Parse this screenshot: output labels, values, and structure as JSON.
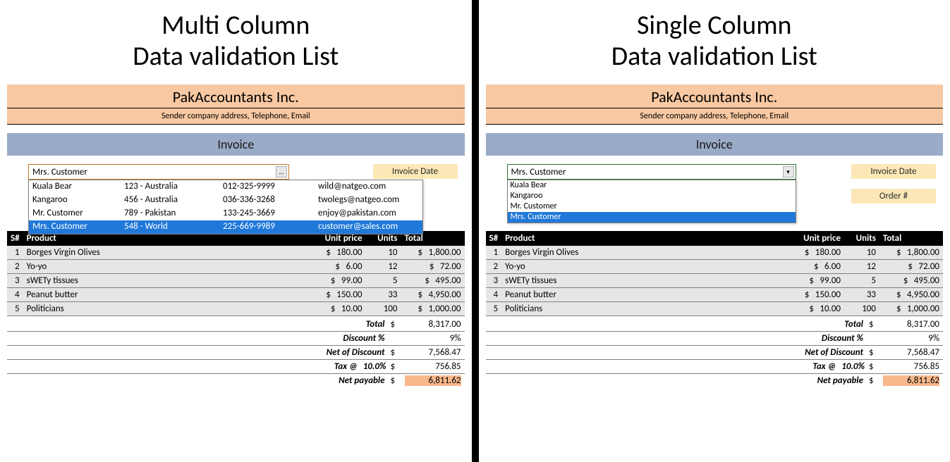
{
  "left": {
    "title_line1": "Multi Column",
    "title_line2": "Data validation List",
    "company_name": "PakAccountants Inc.",
    "company_sub": "Sender company address, Telephone, Email",
    "invoice_label": "Invoice",
    "combo_value": "Mrs. Customer",
    "combo_btn": "…",
    "dropdown": [
      {
        "name": "Kuala Bear",
        "addr": "123 - Australia",
        "phone": "012-325-9999",
        "email": "wild@natgeo.com",
        "sel": false
      },
      {
        "name": "Kangaroo",
        "addr": "456 - Australia",
        "phone": "036-336-3268",
        "email": "twolegs@natgeo.com",
        "sel": false
      },
      {
        "name": "Mr. Customer",
        "addr": "789 - Pakistan",
        "phone": "133-245-3669",
        "email": "enjoy@pakistan.com",
        "sel": false
      },
      {
        "name": "Mrs. Customer",
        "addr": "548 - World",
        "phone": "225-669-9989",
        "email": "customer@sales.com",
        "sel": true
      }
    ],
    "meta": {
      "invoice_date": "Invoice Date"
    },
    "table": {
      "headers": {
        "sn": "S#",
        "product": "Product",
        "unit_price": "Unit price",
        "units": "Units",
        "total": "Total"
      },
      "rows": [
        {
          "sn": "1",
          "product": "Borges Virgin Olives",
          "up": "180.00",
          "units": "10",
          "total": "1,800.00"
        },
        {
          "sn": "2",
          "product": "Yo-yo",
          "up": "6.00",
          "units": "12",
          "total": "72.00"
        },
        {
          "sn": "3",
          "product": "sWETy tissues",
          "up": "99.00",
          "units": "5",
          "total": "495.00"
        },
        {
          "sn": "4",
          "product": "Peanut butter",
          "up": "150.00",
          "units": "33",
          "total": "4,950.00"
        },
        {
          "sn": "5",
          "product": "Politicians",
          "up": "10.00",
          "units": "100",
          "total": "1,000.00"
        }
      ]
    },
    "summary": {
      "total_label": "Total",
      "total": "8,317.00",
      "discount_label": "Discount %",
      "discount": "9%",
      "net_disc_label": "Net of Discount",
      "net_disc": "7,568.47",
      "tax_label": "Tax @",
      "tax_rate": "10.0%",
      "tax": "756.85",
      "net_pay_label": "Net payable",
      "net_pay": "6,811.62",
      "currency": "$"
    }
  },
  "right": {
    "title_line1": "Single Column",
    "title_line2": "Data validation List",
    "company_name": "PakAccountants Inc.",
    "company_sub": "Sender company address, Telephone, Email",
    "invoice_label": "Invoice",
    "combo_value": "Mrs. Customer",
    "combo_btn": "▾",
    "dropdown": [
      {
        "name": "Kuala Bear",
        "sel": false
      },
      {
        "name": "Kangaroo",
        "sel": false
      },
      {
        "name": "Mr. Customer",
        "sel": false
      },
      {
        "name": "Mrs. Customer",
        "sel": true
      }
    ],
    "meta": {
      "invoice_date": "Invoice Date",
      "order_no": "Order #"
    },
    "table": {
      "headers": {
        "sn": "S#",
        "product": "Product",
        "unit_price": "Unit price",
        "units": "Units",
        "total": "Total"
      },
      "rows": [
        {
          "sn": "1",
          "product": "Borges Virgin Olives",
          "up": "180.00",
          "units": "10",
          "total": "1,800.00"
        },
        {
          "sn": "2",
          "product": "Yo-yo",
          "up": "6.00",
          "units": "12",
          "total": "72.00"
        },
        {
          "sn": "3",
          "product": "sWETy tissues",
          "up": "99.00",
          "units": "5",
          "total": "495.00"
        },
        {
          "sn": "4",
          "product": "Peanut butter",
          "up": "150.00",
          "units": "33",
          "total": "4,950.00"
        },
        {
          "sn": "5",
          "product": "Politicians",
          "up": "10.00",
          "units": "100",
          "total": "1,000.00"
        }
      ]
    },
    "summary": {
      "total_label": "Total",
      "total": "8,317.00",
      "discount_label": "Discount %",
      "discount": "9%",
      "net_disc_label": "Net of Discount",
      "net_disc": "7,568.47",
      "tax_label": "Tax @",
      "tax_rate": "10.0%",
      "tax": "756.85",
      "net_pay_label": "Net payable",
      "net_pay": "6,811.62",
      "currency": "$"
    }
  },
  "colors": {
    "peach": "#f7c8a2",
    "blue_band": "#9aabc7",
    "cream": "#fbe8b6",
    "row_bg": "#e6e6e6",
    "sel_blue": "#2078d8",
    "netpay_bg": "#f8b88c"
  }
}
